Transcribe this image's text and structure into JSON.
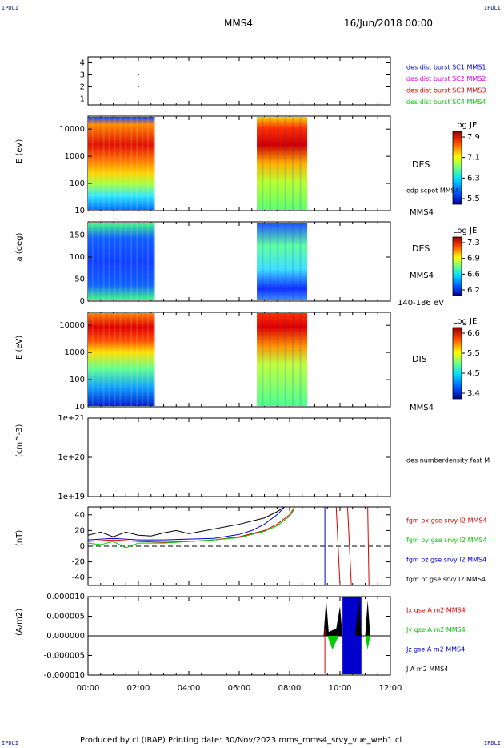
{
  "corners": {
    "tl": "IPDLI",
    "tr": "IPDLI",
    "bl": "IPDLI",
    "br": "IPDLI"
  },
  "header": {
    "spacecraft": "MMS4",
    "date": "16/Jun/2018 00:00"
  },
  "footer": {
    "text": "Produced by cl (IRAP)   Printing date: 30/Nov/2023   mms_mms4_srvy_vue_web1.cl"
  },
  "colors": {
    "blue": "#0000cc",
    "magenta": "#dd00dd",
    "red": "#dd0000",
    "green": "#00cc00",
    "black": "#000000"
  },
  "chart_data": [
    {
      "type": "scatter",
      "yticks": [
        "4",
        "3",
        "2",
        "1"
      ],
      "ylim": [
        0.5,
        4.5
      ],
      "legend": [
        "des dist burst SC1 MMS1",
        "des dist burst SC2 MMS2",
        "des dist burst SC3 MMS3",
        "des dist burst SC4 MMS4"
      ],
      "points": [
        {
          "x": 2.0,
          "y": 3
        },
        {
          "x": 2.0,
          "y": 2
        }
      ]
    },
    {
      "type": "heatmap",
      "ylabel": "E (eV)",
      "yticks": [
        "10000",
        "1000",
        "100",
        "10"
      ],
      "ylim": [
        10,
        30000
      ],
      "yscale": "log",
      "colorbar": {
        "title": "Log JE",
        "ticks": [
          "7.9",
          "7.1",
          "6.3",
          "5.5"
        ]
      },
      "label": "DES",
      "annotations": [
        "edp scpot MMS4",
        "MMS4"
      ],
      "coverage": [
        [
          0.0,
          2.65
        ],
        [
          6.7,
          8.7
        ]
      ]
    },
    {
      "type": "heatmap",
      "ylabel": "a (deg)",
      "yticks": [
        "150",
        "100",
        "50",
        "0"
      ],
      "ylim": [
        0,
        180
      ],
      "colorbar": {
        "title": "Log JE",
        "ticks": [
          "7.3",
          "6.9",
          "6.6",
          "6.2"
        ]
      },
      "label": "DES",
      "annotations": [
        "MMS4",
        "140-186 eV"
      ],
      "coverage": [
        [
          0.0,
          2.65
        ],
        [
          6.7,
          8.7
        ]
      ]
    },
    {
      "type": "heatmap",
      "ylabel": "E (eV)",
      "yticks": [
        "10000",
        "1000",
        "100",
        "10"
      ],
      "ylim": [
        10,
        30000
      ],
      "yscale": "log",
      "colorbar": {
        "title": "Log JE",
        "ticks": [
          "6.6",
          "5.5",
          "4.5",
          "3.4"
        ]
      },
      "label": "DIS",
      "annotations": [
        "MMS4"
      ],
      "coverage": [
        [
          0.0,
          2.65
        ],
        [
          6.7,
          8.7
        ]
      ]
    },
    {
      "type": "line",
      "ylabel": "(cm^-3)",
      "yticks": [
        "1e+21",
        "1e+20",
        "1e+19"
      ],
      "ylim": [
        1e+19,
        1e+21
      ],
      "yscale": "log",
      "legend": [
        "des numberdensity fast M"
      ],
      "series": []
    },
    {
      "type": "line",
      "ylabel": "(nT)",
      "yticks": [
        "40",
        "20",
        "0",
        "-20",
        "-40"
      ],
      "ylim": [
        -50,
        50
      ],
      "legend": [
        "fgm bx gse srvy l2 MMS4",
        "fgm by gse srvy l2 MMS4",
        "fgm bz gse srvy l2 MMS4",
        "fgm bt gse srvy l2 MMS4"
      ],
      "series": [
        {
          "name": "fgm bt gse srvy l2 MMS4",
          "x": [
            0,
            0.5,
            1,
            1.5,
            2,
            2.5,
            3,
            3.5,
            4,
            4.5,
            5,
            5.5,
            6,
            6.5,
            7,
            7.5,
            7.8
          ],
          "y": [
            14,
            18,
            12,
            18,
            14,
            13,
            17,
            20,
            16,
            19,
            22,
            25,
            28,
            32,
            36,
            44,
            50
          ]
        },
        {
          "name": "fgm bz gse srvy l2 MMS4",
          "x": [
            0,
            1,
            2,
            3,
            4,
            5,
            6,
            6.5,
            7,
            7.5,
            7.8
          ],
          "y": [
            8,
            10,
            8,
            8,
            9,
            10,
            15,
            20,
            28,
            40,
            50
          ]
        },
        {
          "name": "fgm bx gse srvy l2 MMS4",
          "x": [
            0,
            1,
            2,
            3,
            4,
            5,
            6,
            7,
            7.5,
            8,
            8.2
          ],
          "y": [
            6,
            8,
            6,
            5,
            6,
            8,
            12,
            20,
            28,
            40,
            50
          ]
        },
        {
          "name": "fgm by gse srvy l2 MMS4",
          "x": [
            0,
            0.5,
            1,
            1.5,
            2,
            3,
            4,
            5,
            6,
            7,
            7.5,
            8,
            8.2
          ],
          "y": [
            4,
            2,
            6,
            -2,
            4,
            4,
            6,
            8,
            11,
            19,
            26,
            38,
            48
          ]
        },
        {
          "name": "spike-blue",
          "x": [
            9.4,
            9.4
          ],
          "y": [
            50,
            -50
          ]
        },
        {
          "name": "spike-red",
          "x": [
            9.85,
            10.0
          ],
          "y": [
            50,
            -50
          ]
        },
        {
          "name": "spike-red-2",
          "x": [
            10.3,
            10.45
          ],
          "y": [
            50,
            -50
          ]
        },
        {
          "name": "spike-red-3",
          "x": [
            11.1,
            11.15
          ],
          "y": [
            50,
            -50
          ]
        }
      ]
    },
    {
      "type": "line",
      "ylabel": "(A/m2)",
      "yticks": [
        "0.000010",
        "0.000005",
        "0.000000",
        "-0.000005",
        "-0.000010"
      ],
      "ylim": [
        -1e-05,
        1e-05
      ],
      "xticks": [
        "00:00",
        "02:00",
        "04:00",
        "06:00",
        "08:00",
        "10:00",
        "12:00"
      ],
      "legend": [
        "Jx gse A m2 MMS4",
        "Jy gse A m2 MMS4",
        "Jz gse A m2 MMS4",
        "J A m2 MMS4"
      ],
      "series": []
    }
  ]
}
